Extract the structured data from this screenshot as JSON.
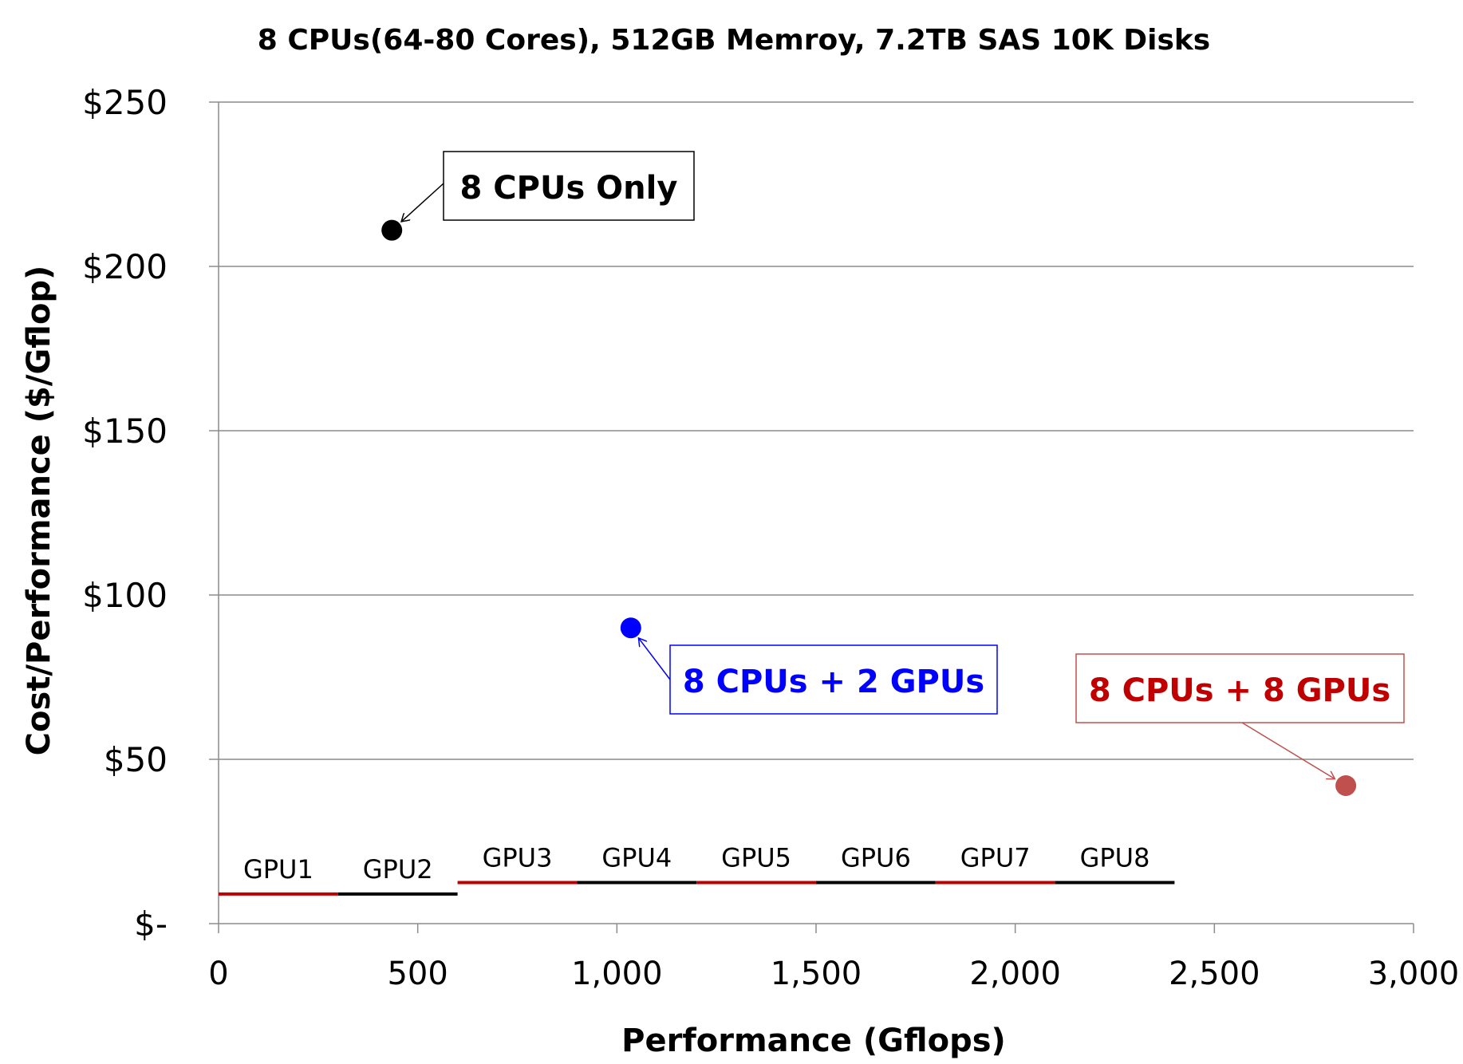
{
  "chart_data": {
    "type": "scatter",
    "title": "8 CPUs(64-80 Cores), 512GB Memroy, 7.2TB SAS 10K Disks",
    "xlabel": "Performance (Gflops)",
    "ylabel": "Cost/Performance ($/Gflop)",
    "xlim": [
      0,
      3000
    ],
    "ylim": [
      0,
      250
    ],
    "grid": "horizontal",
    "x_ticks": [
      0,
      500,
      1000,
      1500,
      2000,
      2500,
      3000
    ],
    "x_tick_labels": [
      "0",
      "500",
      "1,000",
      "1,500",
      "2,000",
      "2,500",
      "3,000"
    ],
    "y_ticks": [
      0,
      50,
      100,
      150,
      200,
      250
    ],
    "y_tick_labels": [
      "$-",
      "$50",
      "$100",
      "$150",
      "$200",
      "$250"
    ],
    "points": [
      {
        "label": "8 CPUs Only",
        "x": 435,
        "y": 211,
        "color": "#000000"
      },
      {
        "label": "8 CPUs + 2 GPUs",
        "x": 1035,
        "y": 90,
        "color": "#0000ff"
      },
      {
        "label": "8 CPUs + 8 GPUs",
        "x": 2830,
        "y": 42,
        "color": "#c0504d",
        "label_color": "#c00000"
      }
    ],
    "gpu_segments": [
      {
        "label": "GPU1",
        "x_start": 0,
        "x_end": 300,
        "y": 9,
        "color": "#c00000"
      },
      {
        "label": "GPU2",
        "x_start": 300,
        "x_end": 600,
        "y": 9,
        "color": "#000000"
      },
      {
        "label": "GPU3",
        "x_start": 600,
        "x_end": 900,
        "y": 12.5,
        "color": "#c00000"
      },
      {
        "label": "GPU4",
        "x_start": 900,
        "x_end": 1200,
        "y": 12.5,
        "color": "#000000"
      },
      {
        "label": "GPU5",
        "x_start": 1200,
        "x_end": 1500,
        "y": 12.5,
        "color": "#c00000"
      },
      {
        "label": "GPU6",
        "x_start": 1500,
        "x_end": 1800,
        "y": 12.5,
        "color": "#000000"
      },
      {
        "label": "GPU7",
        "x_start": 1800,
        "x_end": 2100,
        "y": 12.5,
        "color": "#c00000"
      },
      {
        "label": "GPU8",
        "x_start": 2100,
        "x_end": 2400,
        "y": 12.5,
        "color": "#000000"
      }
    ]
  }
}
